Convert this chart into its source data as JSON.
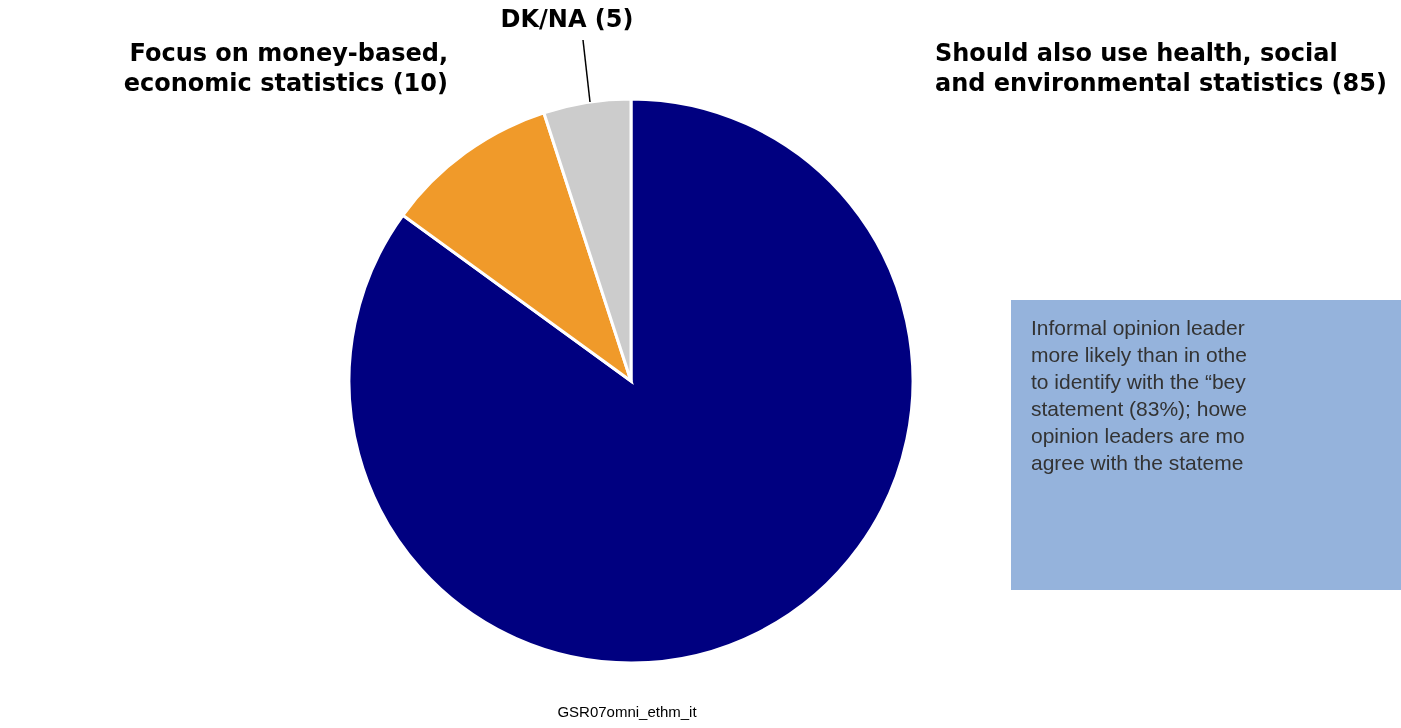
{
  "chart_data": {
    "type": "pie",
    "categories": [
      "Should also use health, social\nand environmental statistics (85)",
      "Focus on money-based,\neconomic statistics  (10)",
      "DK/NA (5)"
    ],
    "values": [
      85,
      10,
      5
    ],
    "colors": [
      "#000080",
      "#f09a2a",
      "#cccccc"
    ],
    "annotations": [
      "Informal opinion leader\nmore likely than in othe\nto identify with the “bey\nstatement (83%); howe\nopinion leaders are mo\nagree with the stateme",
      "GSR07omni_ethm_it"
    ]
  }
}
